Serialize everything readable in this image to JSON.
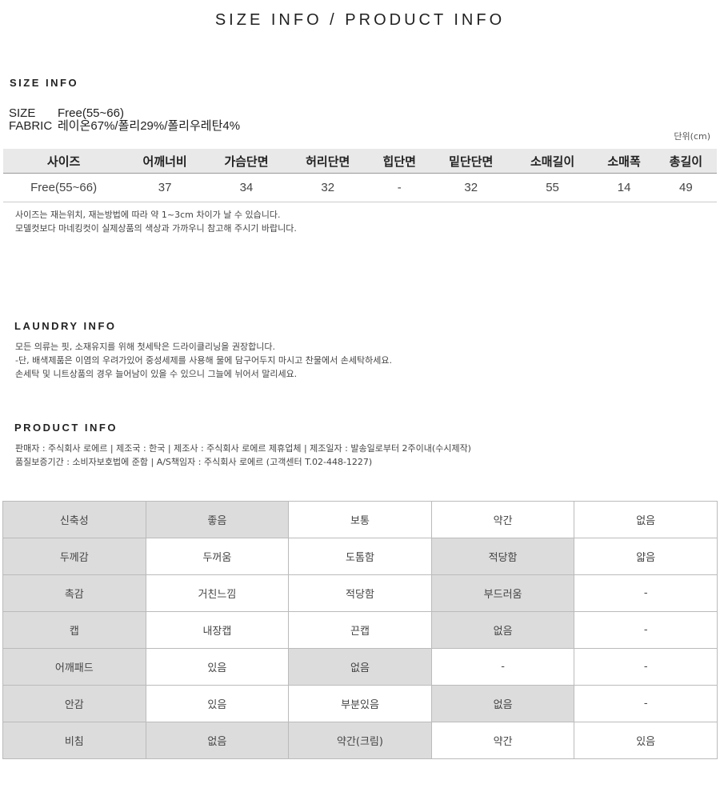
{
  "title": "SIZE INFO / PRODUCT INFO",
  "size_info": {
    "heading": "SIZE INFO",
    "size_label": "SIZE",
    "size_value": "Free(55~66)",
    "fabric_label": "FABRIC",
    "fabric_value": "레이온67%/폴리29%/폴리우레탄4%",
    "unit": "단위(cm)",
    "headers": [
      "사이즈",
      "어깨너비",
      "가슴단면",
      "허리단면",
      "힙단면",
      "밑단단면",
      "소매길이",
      "소매폭",
      "총길이"
    ],
    "row": [
      "Free(55~66)",
      "37",
      "34",
      "32",
      "-",
      "32",
      "55",
      "14",
      "49"
    ],
    "notes": [
      "사이즈는 재는위치, 재는방법에 따라 약 1~3cm 차이가 날 수 있습니다.",
      "모델컷보다 마네킹컷이 실제상품의 색상과 가까우니 참고해 주시기 바랍니다."
    ]
  },
  "laundry": {
    "heading": "LAUNDRY INFO",
    "lines": [
      "모든 의류는 핏, 소재유지를 위해 첫세탁은 드라이클리닝을 권장합니다.",
      "-단, 배색제품은 이염의 우려가있어 중성세제를 사용해 물에 담구어두지 마시고 찬물에서 손세탁하세요.",
      "손세탁 및 니트상품의 경우 늘어남이 있을 수 있으니 그늘에 뉘어서 말리세요."
    ]
  },
  "product": {
    "heading": "PRODUCT INFO",
    "lines": [
      "판매자 : 주식회사 로에르 | 제조국 : 한국 | 제조사 : 주식회사 로에르 제휴업체 | 제조일자 : 발송일로부터 2주이내(수시제작)",
      "품질보증기간 : 소비자보호법에 준함 | A/S책임자 : 주식회사 로에르 (고객센터 T.02-448-1227)"
    ]
  },
  "attributes": [
    {
      "label": "신축성",
      "options": [
        "좋음",
        "보통",
        "약간",
        "없음"
      ],
      "selected": [
        0
      ]
    },
    {
      "label": "두께감",
      "options": [
        "두꺼움",
        "도톰함",
        "적당함",
        "얇음"
      ],
      "selected": [
        2
      ]
    },
    {
      "label": "촉감",
      "options": [
        "거친느낌",
        "적당함",
        "부드러움",
        "-"
      ],
      "selected": [
        2
      ]
    },
    {
      "label": "캡",
      "options": [
        "내장캡",
        "끈캡",
        "없음",
        "-"
      ],
      "selected": [
        2
      ]
    },
    {
      "label": "어깨패드",
      "options": [
        "있음",
        "없음",
        "-",
        "-"
      ],
      "selected": [
        1
      ]
    },
    {
      "label": "안감",
      "options": [
        "있음",
        "부분있음",
        "없음",
        "-"
      ],
      "selected": [
        2
      ]
    },
    {
      "label": "비침",
      "options": [
        "없음",
        "약간(크림)",
        "약간",
        "있음"
      ],
      "selected": [
        0,
        1
      ]
    }
  ],
  "colors": {
    "highlight": "#dcdcdc",
    "header_bg": "#e9e9e9"
  }
}
